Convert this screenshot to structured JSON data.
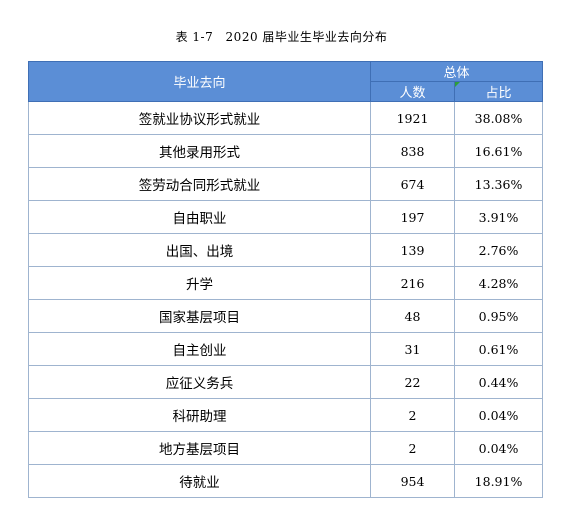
{
  "caption": {
    "label": "表 1-7",
    "text": "2020 届毕业生毕业去向分布"
  },
  "table": {
    "header": {
      "category": "毕业去向",
      "group": "总体",
      "count": "人数",
      "percent": "占比"
    },
    "rows": [
      {
        "category": "签就业协议形式就业",
        "count": "1921",
        "percent": "38.08%"
      },
      {
        "category": "其他录用形式",
        "count": "838",
        "percent": "16.61%"
      },
      {
        "category": "签劳动合同形式就业",
        "count": "674",
        "percent": "13.36%"
      },
      {
        "category": "自由职业",
        "count": "197",
        "percent": "3.91%"
      },
      {
        "category": "出国、出境",
        "count": "139",
        "percent": "2.76%"
      },
      {
        "category": "升学",
        "count": "216",
        "percent": "4.28%"
      },
      {
        "category": "国家基层项目",
        "count": "48",
        "percent": "0.95%"
      },
      {
        "category": "自主创业",
        "count": "31",
        "percent": "0.61%"
      },
      {
        "category": "应征义务兵",
        "count": "22",
        "percent": "0.44%"
      },
      {
        "category": "科研助理",
        "count": "2",
        "percent": "0.04%"
      },
      {
        "category": "地方基层项目",
        "count": "2",
        "percent": "0.04%"
      },
      {
        "category": "待就业",
        "count": "954",
        "percent": "18.91%"
      }
    ]
  },
  "colors": {
    "header_bg": "#5b8ed6",
    "header_text": "#ffffff",
    "cell_border": "#9fb4cf",
    "corner_marker": "#2e9e3a"
  }
}
